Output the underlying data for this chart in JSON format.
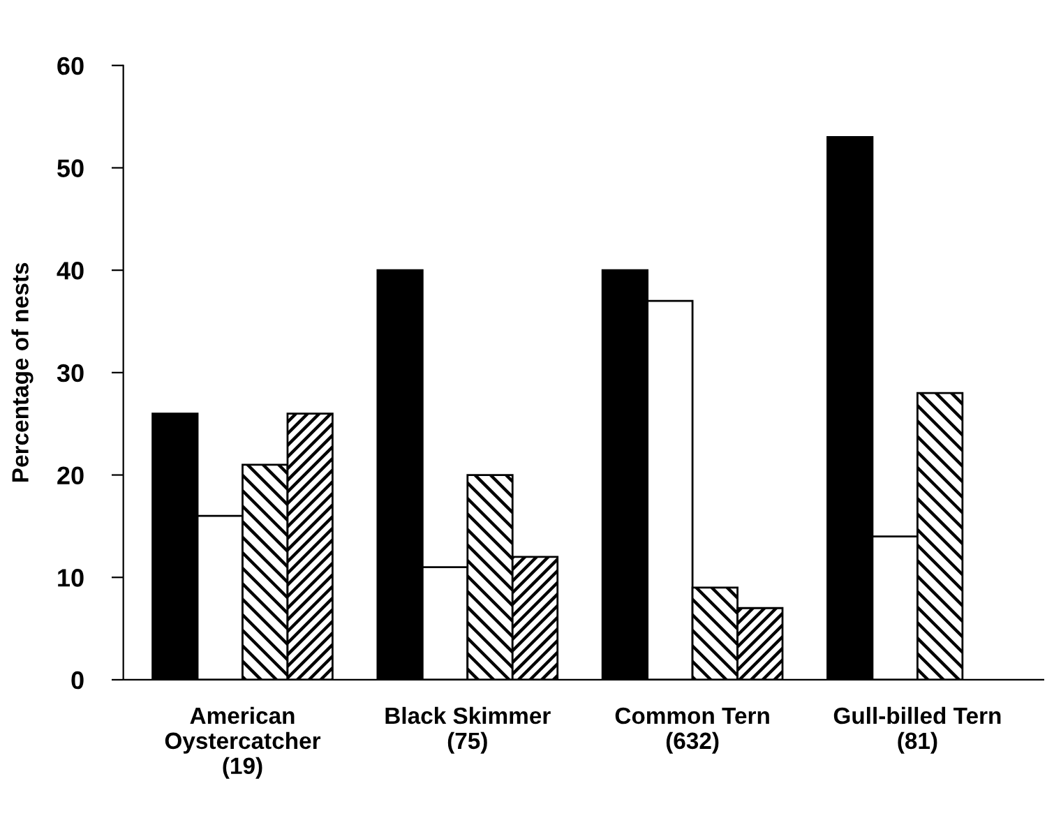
{
  "chart_data": {
    "type": "bar",
    "ylabel": "Percentage of nests",
    "categories": [
      "American\nOystercatcher\n(19)",
      "Black Skimmer\n(75)",
      "Common Tern\n(632)",
      "Gull-billed Tern\n(81)"
    ],
    "series": [
      {
        "color": "#000000",
        "values": [
          26,
          40,
          40,
          53
        ]
      },
      {
        "color": "#ffffff",
        "values": [
          16,
          11,
          37,
          14
        ]
      },
      {
        "color": "#000000",
        "values": [
          21,
          20,
          9,
          28
        ]
      },
      {
        "color": "#000000",
        "values": [
          26,
          12,
          7,
          null
        ]
      }
    ],
    "ylim": [
      0,
      60
    ],
    "yticks": [
      0,
      10,
      20,
      30,
      40,
      50,
      60
    ],
    "grid": false
  }
}
